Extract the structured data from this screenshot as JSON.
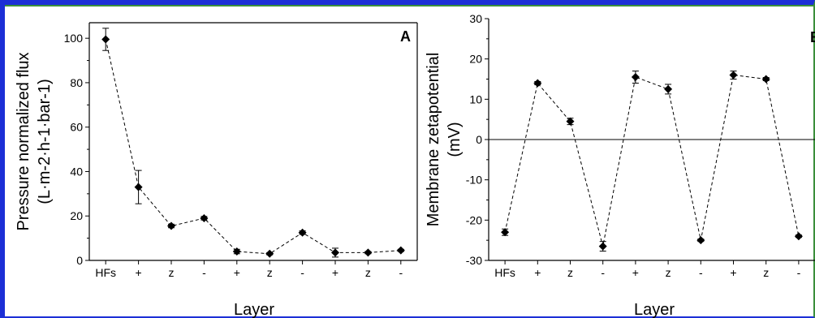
{
  "chart_data": [
    {
      "panel_label": "A",
      "type": "line",
      "line_style": "dashed",
      "marker": "diamond",
      "categories": [
        "HFs",
        "+",
        "z",
        "-",
        "+",
        "z",
        "-",
        "+",
        "z",
        "-"
      ],
      "values": [
        99.5,
        33,
        15.5,
        19,
        4,
        3,
        12.5,
        3.5,
        3.5,
        4.5
      ],
      "errors": [
        5,
        7.5,
        0.8,
        0.8,
        1,
        0.5,
        0.8,
        2,
        0.5,
        0.5
      ],
      "xlabel": "Layer",
      "ylabel_line1": "Pressure normalized flux",
      "ylabel_line2": "(L·m-2·h-1·bar-1)",
      "ylim": [
        0,
        107
      ],
      "yticks": [
        0,
        20,
        40,
        60,
        80,
        100
      ],
      "zero_line": false
    },
    {
      "panel_label": "B",
      "type": "line",
      "line_style": "dashed",
      "marker": "diamond",
      "categories": [
        "HFs",
        "+",
        "z",
        "-",
        "+",
        "z",
        "-",
        "+",
        "z",
        "-"
      ],
      "values": [
        -23,
        14,
        4.5,
        -26.5,
        15.5,
        12.5,
        -25,
        16,
        15,
        -24
      ],
      "errors": [
        0.8,
        0.4,
        0.8,
        1.2,
        1.5,
        1.2,
        0.3,
        1,
        0.4,
        0.3
      ],
      "xlabel": "Layer",
      "ylabel_line1": "Membrane zetapotential",
      "ylabel_line2": "(mV)",
      "ylim": [
        -30,
        30
      ],
      "yticks": [
        -30,
        -20,
        -10,
        0,
        10,
        20,
        30
      ],
      "zero_line": true
    }
  ]
}
